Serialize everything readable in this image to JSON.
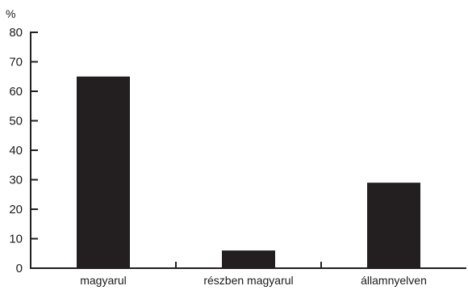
{
  "chart_data": {
    "type": "bar",
    "title": "",
    "ylabel": "%",
    "xlabel": "",
    "categories": [
      "magyarul",
      "részben magyarul",
      "államnyelven"
    ],
    "values": [
      65,
      6,
      29
    ],
    "ylim": [
      0,
      80
    ],
    "yticks": [
      0,
      10,
      20,
      30,
      40,
      50,
      60,
      70,
      80
    ],
    "grid": false,
    "legend": "none",
    "bar_color": "#231f20",
    "axis_color": "#231f20"
  }
}
